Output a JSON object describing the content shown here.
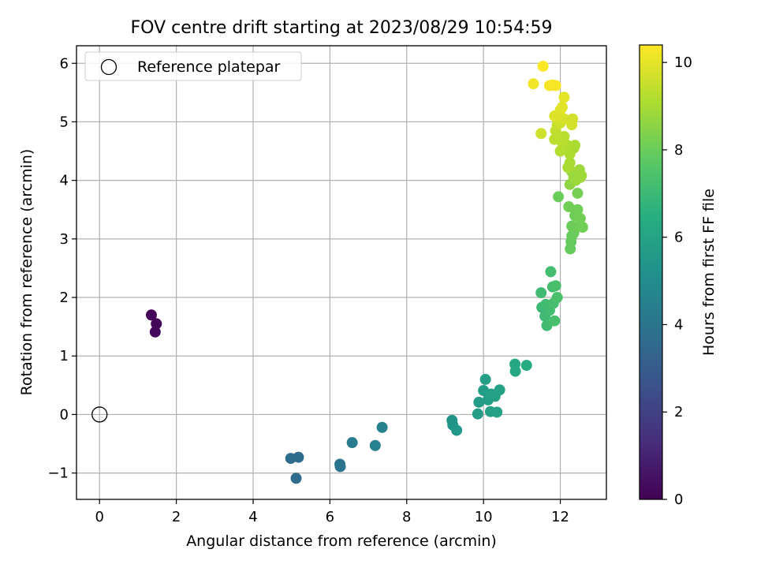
{
  "chart_data": {
    "type": "scatter",
    "title": "FOV centre drift starting at 2023/08/29 10:54:59",
    "xlabel": "Angular distance from reference (arcmin)",
    "ylabel": "Rotation from reference (arcmin)",
    "xlim": [
      -0.6,
      13.2
    ],
    "ylim": [
      -1.45,
      6.3
    ],
    "xticks": [
      "0",
      "2",
      "4",
      "6",
      "8",
      "10",
      "12"
    ],
    "yticks": [
      "−1",
      "0",
      "1",
      "2",
      "3",
      "4",
      "5",
      "6"
    ],
    "grid": true,
    "legend_position": "top-left",
    "legend": [
      {
        "label": "Reference platepar",
        "marker": "open-circle"
      }
    ],
    "reference_point": {
      "x": 0,
      "y": 0
    },
    "colorbar": {
      "label": "Hours from first FF file",
      "range": [
        0,
        10.4
      ],
      "ticks": [
        "0",
        "2",
        "4",
        "6",
        "8",
        "10"
      ],
      "colormap": "viridis"
    },
    "points": [
      {
        "x": 1.35,
        "y": 1.7,
        "c": 0.1
      },
      {
        "x": 1.48,
        "y": 1.55,
        "c": 0.15
      },
      {
        "x": 1.45,
        "y": 1.41,
        "c": 0.2
      },
      {
        "x": 4.98,
        "y": -0.75,
        "c": 3.6
      },
      {
        "x": 5.18,
        "y": -0.73,
        "c": 3.6
      },
      {
        "x": 5.12,
        "y": -1.09,
        "c": 3.65
      },
      {
        "x": 6.26,
        "y": -0.85,
        "c": 4.0
      },
      {
        "x": 6.27,
        "y": -0.89,
        "c": 4.0
      },
      {
        "x": 6.58,
        "y": -0.48,
        "c": 4.3
      },
      {
        "x": 7.18,
        "y": -0.53,
        "c": 4.5
      },
      {
        "x": 7.36,
        "y": -0.22,
        "c": 4.6
      },
      {
        "x": 9.18,
        "y": -0.1,
        "c": 5.4
      },
      {
        "x": 9.2,
        "y": -0.18,
        "c": 5.4
      },
      {
        "x": 9.3,
        "y": -0.27,
        "c": 5.45
      },
      {
        "x": 9.85,
        "y": 0.01,
        "c": 5.7
      },
      {
        "x": 9.88,
        "y": 0.21,
        "c": 5.7
      },
      {
        "x": 10.0,
        "y": 0.41,
        "c": 5.75
      },
      {
        "x": 10.05,
        "y": 0.6,
        "c": 5.8
      },
      {
        "x": 10.12,
        "y": 0.25,
        "c": 5.8
      },
      {
        "x": 10.18,
        "y": 0.05,
        "c": 5.85
      },
      {
        "x": 10.2,
        "y": 0.35,
        "c": 5.85
      },
      {
        "x": 10.3,
        "y": 0.31,
        "c": 5.9
      },
      {
        "x": 10.35,
        "y": 0.04,
        "c": 5.9
      },
      {
        "x": 10.42,
        "y": 0.42,
        "c": 5.95
      },
      {
        "x": 10.82,
        "y": 0.86,
        "c": 6.2
      },
      {
        "x": 10.83,
        "y": 0.74,
        "c": 6.2
      },
      {
        "x": 11.12,
        "y": 0.84,
        "c": 6.4
      },
      {
        "x": 11.5,
        "y": 2.08,
        "c": 7.1
      },
      {
        "x": 11.52,
        "y": 1.83,
        "c": 7.0
      },
      {
        "x": 11.6,
        "y": 1.68,
        "c": 7.05
      },
      {
        "x": 11.62,
        "y": 1.88,
        "c": 7.1
      },
      {
        "x": 11.65,
        "y": 1.52,
        "c": 7.1
      },
      {
        "x": 11.72,
        "y": 1.78,
        "c": 7.15
      },
      {
        "x": 11.75,
        "y": 2.44,
        "c": 7.2
      },
      {
        "x": 11.8,
        "y": 2.18,
        "c": 7.2
      },
      {
        "x": 11.82,
        "y": 1.9,
        "c": 7.25
      },
      {
        "x": 11.85,
        "y": 1.6,
        "c": 7.3
      },
      {
        "x": 11.88,
        "y": 2.2,
        "c": 7.3
      },
      {
        "x": 11.92,
        "y": 2.0,
        "c": 7.35
      },
      {
        "x": 11.95,
        "y": 3.72,
        "c": 8.0
      },
      {
        "x": 12.22,
        "y": 3.55,
        "c": 8.1
      },
      {
        "x": 12.26,
        "y": 2.83,
        "c": 7.9
      },
      {
        "x": 12.28,
        "y": 2.95,
        "c": 7.9
      },
      {
        "x": 12.3,
        "y": 3.05,
        "c": 7.95
      },
      {
        "x": 12.3,
        "y": 3.22,
        "c": 8.0
      },
      {
        "x": 12.35,
        "y": 3.1,
        "c": 8.0
      },
      {
        "x": 12.38,
        "y": 3.4,
        "c": 8.05
      },
      {
        "x": 12.4,
        "y": 3.2,
        "c": 8.05
      },
      {
        "x": 12.45,
        "y": 3.5,
        "c": 8.1
      },
      {
        "x": 12.45,
        "y": 3.78,
        "c": 8.2
      },
      {
        "x": 12.5,
        "y": 3.25,
        "c": 8.1
      },
      {
        "x": 12.52,
        "y": 3.35,
        "c": 8.15
      },
      {
        "x": 12.58,
        "y": 3.2,
        "c": 8.1
      },
      {
        "x": 12.25,
        "y": 3.93,
        "c": 8.6
      },
      {
        "x": 12.3,
        "y": 4.15,
        "c": 8.7
      },
      {
        "x": 12.35,
        "y": 4.05,
        "c": 8.8
      },
      {
        "x": 12.4,
        "y": 4.0,
        "c": 8.8
      },
      {
        "x": 12.42,
        "y": 4.12,
        "c": 8.8
      },
      {
        "x": 12.5,
        "y": 4.18,
        "c": 8.85
      },
      {
        "x": 12.52,
        "y": 4.05,
        "c": 8.9
      },
      {
        "x": 12.55,
        "y": 4.08,
        "c": 8.85
      },
      {
        "x": 12.2,
        "y": 4.22,
        "c": 9.0
      },
      {
        "x": 12.25,
        "y": 4.3,
        "c": 9.05
      },
      {
        "x": 12.25,
        "y": 4.45,
        "c": 9.1
      },
      {
        "x": 12.35,
        "y": 4.55,
        "c": 9.1
      },
      {
        "x": 12.38,
        "y": 4.6,
        "c": 9.05
      },
      {
        "x": 12.18,
        "y": 4.6,
        "c": 9.15
      },
      {
        "x": 12.0,
        "y": 4.5,
        "c": 9.2
      },
      {
        "x": 12.05,
        "y": 4.65,
        "c": 9.25
      },
      {
        "x": 12.1,
        "y": 4.75,
        "c": 9.3
      },
      {
        "x": 11.95,
        "y": 4.72,
        "c": 9.35
      },
      {
        "x": 11.85,
        "y": 4.7,
        "c": 9.35
      },
      {
        "x": 11.88,
        "y": 4.85,
        "c": 9.4
      },
      {
        "x": 11.5,
        "y": 4.8,
        "c": 9.6
      },
      {
        "x": 11.92,
        "y": 4.95,
        "c": 9.5
      },
      {
        "x": 12.0,
        "y": 4.98,
        "c": 9.6
      },
      {
        "x": 12.1,
        "y": 5.05,
        "c": 9.8
      },
      {
        "x": 11.85,
        "y": 5.1,
        "c": 9.9
      },
      {
        "x": 12.0,
        "y": 5.2,
        "c": 9.9
      },
      {
        "x": 12.05,
        "y": 5.25,
        "c": 9.95
      },
      {
        "x": 12.32,
        "y": 5.05,
        "c": 9.7
      },
      {
        "x": 12.3,
        "y": 4.95,
        "c": 9.7
      },
      {
        "x": 12.1,
        "y": 5.42,
        "c": 10.0
      },
      {
        "x": 11.3,
        "y": 5.65,
        "c": 10.2
      },
      {
        "x": 11.72,
        "y": 5.62,
        "c": 10.25
      },
      {
        "x": 11.8,
        "y": 5.63,
        "c": 10.3
      },
      {
        "x": 11.88,
        "y": 5.62,
        "c": 10.3
      },
      {
        "x": 11.55,
        "y": 5.95,
        "c": 10.35
      }
    ]
  }
}
